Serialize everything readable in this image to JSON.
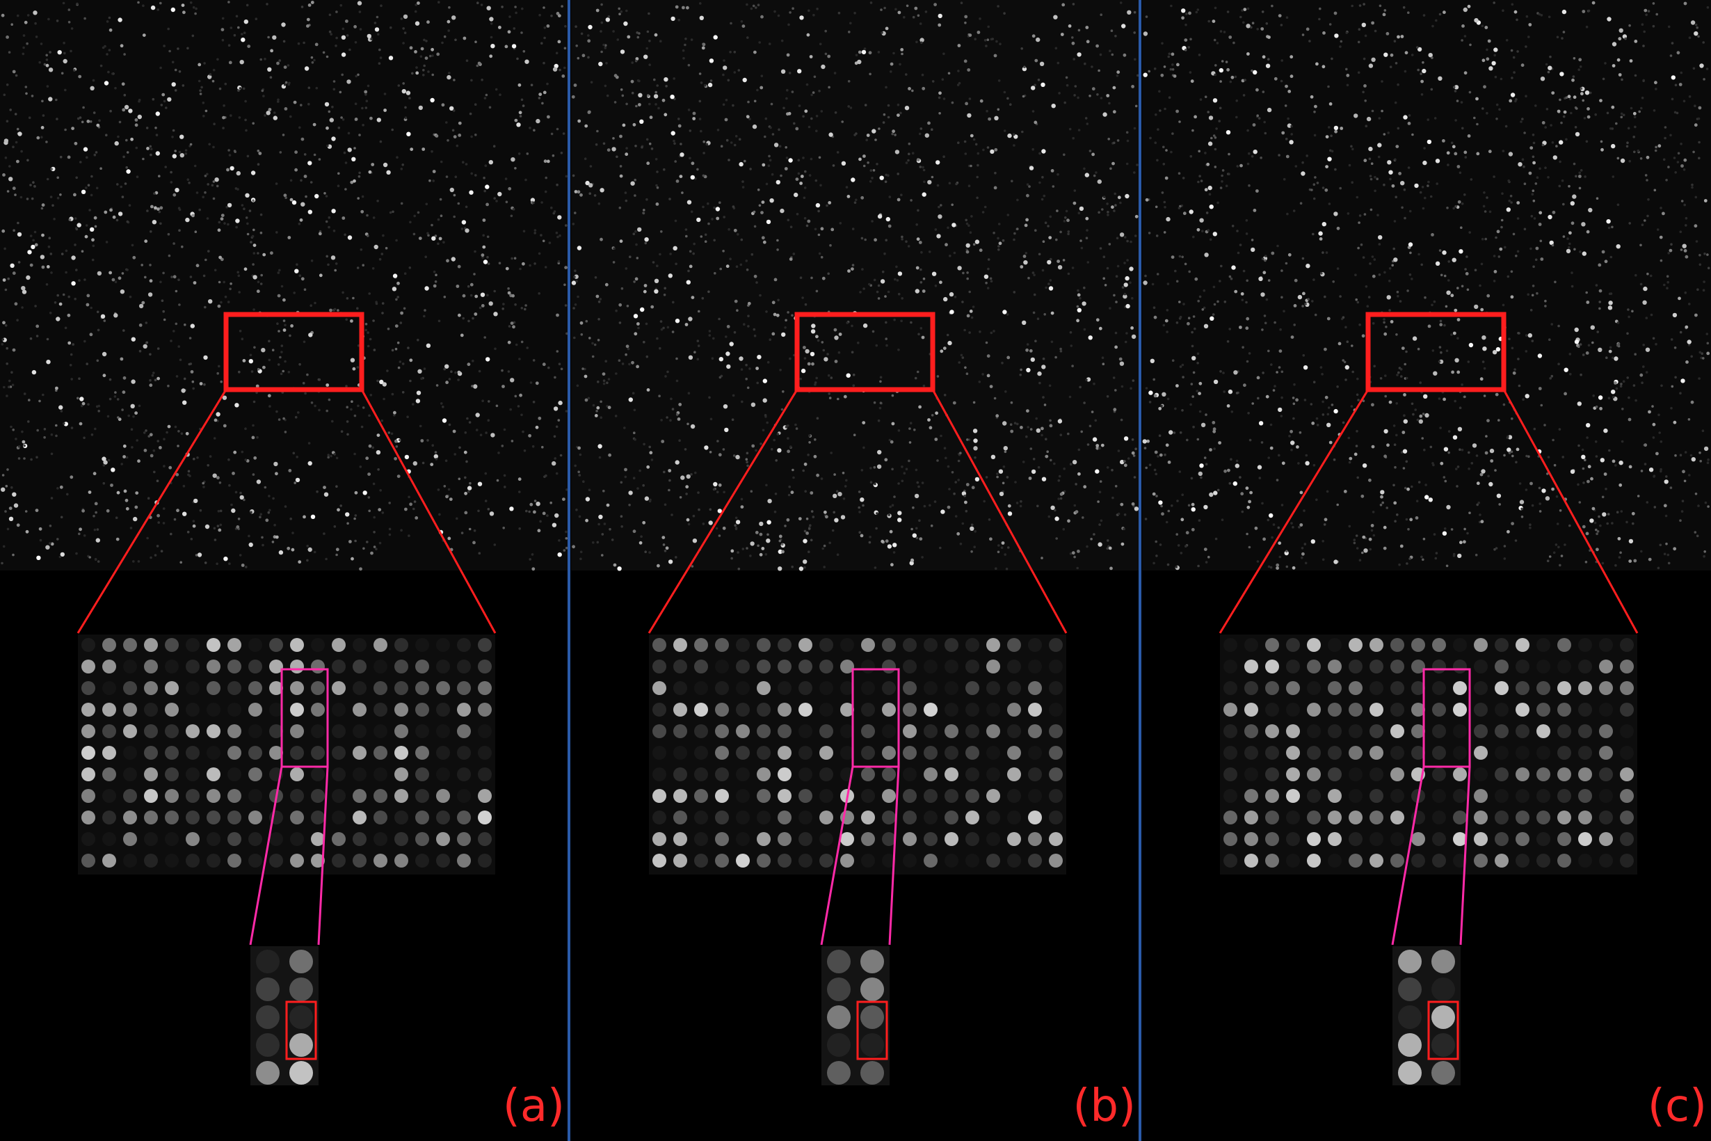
{
  "panels": [
    {
      "label": "(a)",
      "shade": "#0a0a0a"
    },
    {
      "label": "(b)",
      "shade": "#0c0c0c"
    },
    {
      "label": "(c)",
      "shade": "#0a0a0a"
    }
  ],
  "colors": {
    "zoom_box": "#ff1e1e",
    "sub_zoom_box": "#ff2aa8",
    "divider": "#2a5aa8",
    "background": "#000000"
  }
}
